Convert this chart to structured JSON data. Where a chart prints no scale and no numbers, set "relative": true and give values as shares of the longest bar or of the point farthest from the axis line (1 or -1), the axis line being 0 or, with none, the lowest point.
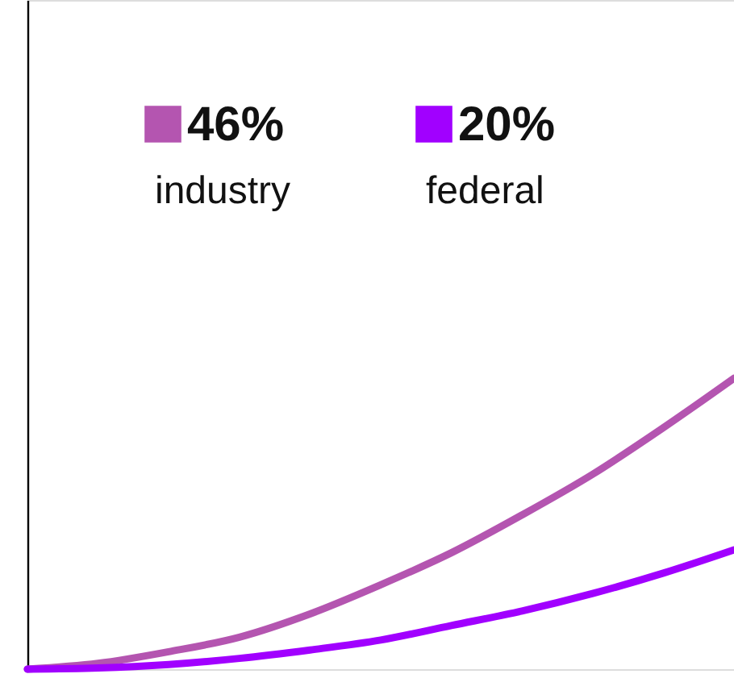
{
  "chart_data": {
    "type": "line",
    "relative": true,
    "grid": false,
    "legend": "top left",
    "marker": "none",
    "line_style": "solid",
    "categories": [
      null,
      null,
      null,
      null,
      null,
      null,
      null,
      null,
      null,
      null,
      null
    ],
    "series": [
      {
        "name": "industry",
        "color": "#b455b0",
        "values": [
          0,
          0.02,
          0.06,
          0.11,
          0.19,
          0.29,
          0.4,
          0.53,
          0.67,
          0.83,
          1
        ]
      },
      {
        "name": "federal",
        "color": "#a100ff",
        "values": [
          0,
          0.004,
          0.016,
          0.037,
          0.066,
          0.1,
          0.15,
          0.2,
          0.26,
          0.33,
          0.41
        ]
      }
    ],
    "annotations": [
      "46%",
      "20%"
    ]
  }
}
